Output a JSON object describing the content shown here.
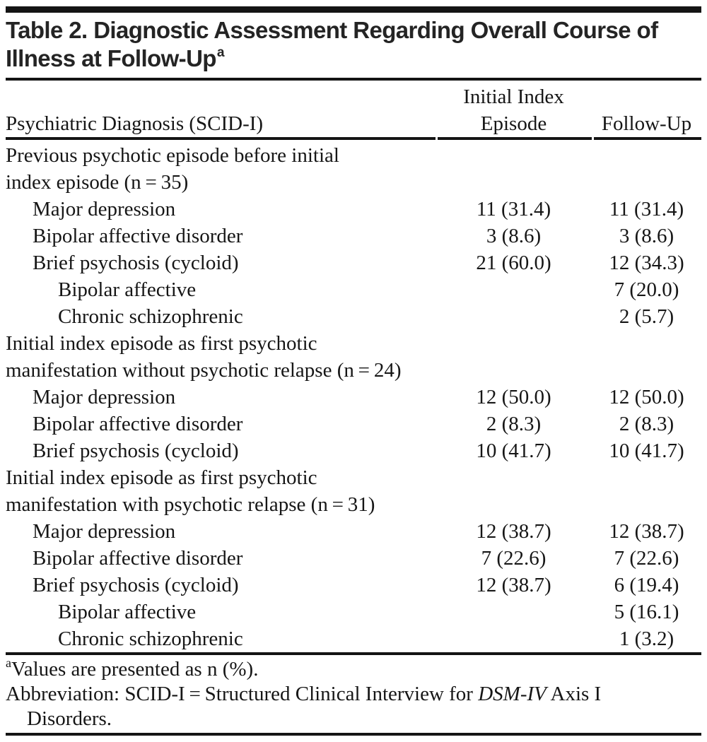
{
  "colors": {
    "ink": "#161616",
    "rule": "#141414",
    "paper": "#ffffff"
  },
  "title": {
    "line1": "Table 2. Diagnostic Assessment Regarding Overall Course of",
    "line2": "Illness at Follow-Up",
    "superscript": "a"
  },
  "header": {
    "col_label": "Psychiatric Diagnosis (SCID-I)",
    "col_initial_line1": "Initial Index",
    "col_initial_line2": "Episode",
    "col_followup": "Follow-Up"
  },
  "rows": [
    {
      "indent": 0,
      "label": "Previous psychotic episode before initial\nindex episode (n = 35)",
      "initial": "",
      "followup": ""
    },
    {
      "indent": 1,
      "label": "Major depression",
      "initial": "11 (31.4)",
      "followup": "11 (31.4)"
    },
    {
      "indent": 1,
      "label": "Bipolar affective disorder",
      "initial": "3 (8.6)",
      "followup": "3 (8.6)"
    },
    {
      "indent": 1,
      "label": "Brief psychosis (cycloid)",
      "initial": "21 (60.0)",
      "followup": "12 (34.3)"
    },
    {
      "indent": 2,
      "label": "Bipolar affective",
      "initial": "",
      "followup": "7 (20.0)"
    },
    {
      "indent": 2,
      "label": "Chronic schizophrenic",
      "initial": "",
      "followup": "2 (5.7)"
    },
    {
      "indent": 0,
      "label": "Initial index episode as first psychotic\nmanifestation without psychotic relapse (n = 24)",
      "initial": "",
      "followup": ""
    },
    {
      "indent": 1,
      "label": "Major depression",
      "initial": "12 (50.0)",
      "followup": "12 (50.0)"
    },
    {
      "indent": 1,
      "label": "Bipolar affective disorder",
      "initial": "2 (8.3)",
      "followup": "2 (8.3)"
    },
    {
      "indent": 1,
      "label": "Brief psychosis (cycloid)",
      "initial": "10 (41.7)",
      "followup": "10 (41.7)"
    },
    {
      "indent": 0,
      "label": "Initial index episode as first psychotic\nmanifestation with psychotic relapse (n = 31)",
      "initial": "",
      "followup": ""
    },
    {
      "indent": 1,
      "label": "Major depression",
      "initial": "12 (38.7)",
      "followup": "12 (38.7)"
    },
    {
      "indent": 1,
      "label": "Bipolar affective disorder",
      "initial": "7 (22.6)",
      "followup": "7 (22.6)"
    },
    {
      "indent": 1,
      "label": "Brief psychosis (cycloid)",
      "initial": "12 (38.7)",
      "followup": "6 (19.4)"
    },
    {
      "indent": 2,
      "label": "Bipolar affective",
      "initial": "",
      "followup": "5 (16.1)"
    },
    {
      "indent": 2,
      "label": "Chronic schizophrenic",
      "initial": "",
      "followup": "1 (3.2)"
    }
  ],
  "footnotes": [
    {
      "marker": "a",
      "text": "Values are presented as n (%)."
    },
    {
      "pre": "Abbreviation: SCID-I = Structured Clinical Interview for ",
      "italic": "DSM-IV",
      "post": " Axis I",
      "line2": "Disorders."
    }
  ]
}
